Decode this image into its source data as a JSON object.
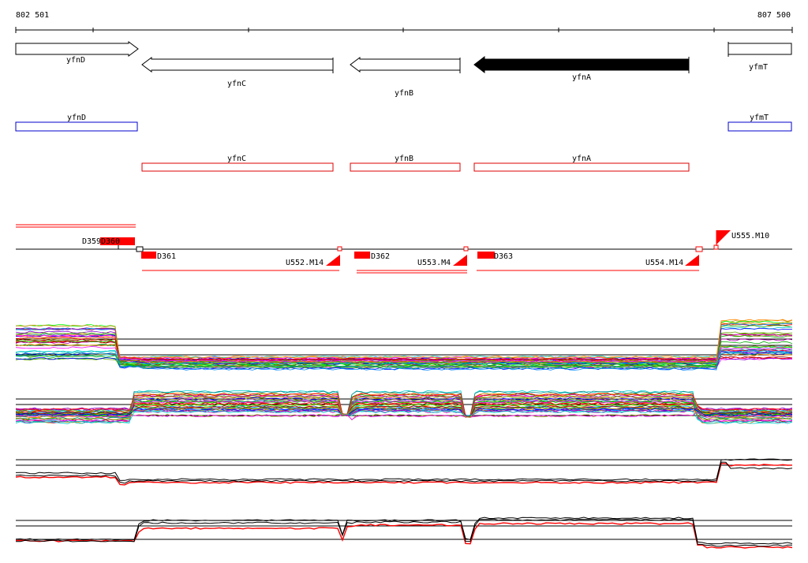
{
  "ruler": {
    "start_label": "802 501",
    "end_label": "807 500"
  },
  "genes": [
    {
      "name": "yfnD",
      "direction": "forward",
      "filled": false
    },
    {
      "name": "yfnC",
      "direction": "reverse",
      "filled": false
    },
    {
      "name": "yfnB",
      "direction": "reverse",
      "filled": false
    },
    {
      "name": "yfnA",
      "direction": "reverse",
      "filled": true
    },
    {
      "name": "yfmT",
      "direction": "forward",
      "filled": false
    }
  ],
  "operons": [
    {
      "name": "yfnD",
      "color": "#0000cc"
    },
    {
      "name": "yfmT",
      "color": "#0000cc"
    },
    {
      "name": "yfnC",
      "color": "#dd0000"
    },
    {
      "name": "yfnB",
      "color": "#dd0000"
    },
    {
      "name": "yfnA",
      "color": "#dd0000"
    }
  ],
  "features": [
    {
      "label": "D359"
    },
    {
      "label": "D360"
    },
    {
      "label": "D361"
    },
    {
      "label": "D362"
    },
    {
      "label": "D363"
    },
    {
      "label": "U552.M14"
    },
    {
      "label": "U553.M4"
    },
    {
      "label": "U554.M14"
    },
    {
      "label": "U555.M10"
    }
  ],
  "colors": {
    "feature": "#ff0000",
    "profile": "#000000",
    "profile_alt": "#ff0000"
  },
  "tracks": [
    {
      "kind": "multi-condition expression",
      "palette": "rainbow"
    },
    {
      "kind": "multi-condition expression",
      "palette": "rainbow"
    },
    {
      "kind": "summary expression",
      "palette": "black-red"
    },
    {
      "kind": "summary expression",
      "palette": "black-red"
    }
  ]
}
